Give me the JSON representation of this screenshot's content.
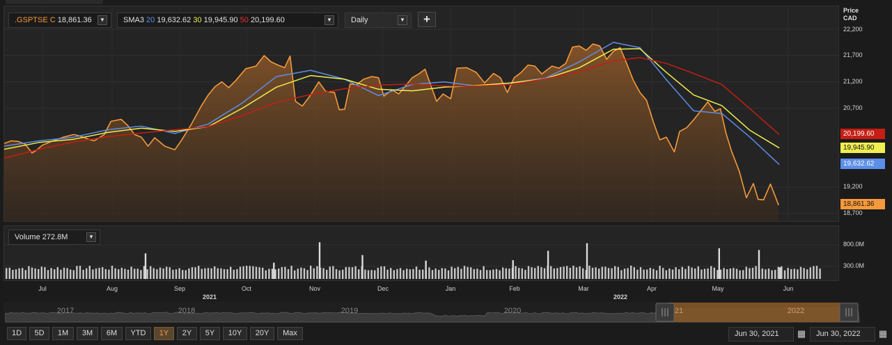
{
  "legend": {
    "symbol": ".GSPTSE",
    "close_prefix": "C",
    "close_value": "18,861.36",
    "sma_label": "SMA3",
    "sma20_period": "20",
    "sma20_value": "19,632.62",
    "sma30_period": "30",
    "sma30_value": "19,945.90",
    "sma50_period": "50",
    "sma50_value": "20,199.60",
    "interval": "Daily",
    "add_symbol": "+"
  },
  "volume_legend": {
    "label": "Volume",
    "value": "272.8M"
  },
  "price_axis": {
    "title_line1": "Price",
    "title_line2": "CAD",
    "ticks": [
      "22,200",
      "21,700",
      "21,200",
      "20,700",
      "19,200",
      "18,700"
    ]
  },
  "volume_axis": {
    "ticks": [
      "800.0M",
      "300.0M"
    ]
  },
  "last_value_tags": {
    "sma50": "20,199.60",
    "sma30": "19,945.90",
    "sma20": "19,632.62",
    "close": "18,861.36"
  },
  "x_axis": {
    "months": [
      "Jul",
      "Aug",
      "Sep",
      "Oct",
      "Nov",
      "Dec",
      "Jan",
      "Feb",
      "Mar",
      "Apr",
      "May",
      "Jun"
    ],
    "years": [
      "2021",
      "2022"
    ]
  },
  "navigator": {
    "years": [
      "2017",
      "2018",
      "2019",
      "2020",
      "2022"
    ],
    "partial_year": "21"
  },
  "range_buttons": [
    "1D",
    "5D",
    "1M",
    "3M",
    "6M",
    "YTD",
    "1Y",
    "2Y",
    "5Y",
    "10Y",
    "20Y",
    "Max"
  ],
  "active_range": "1Y",
  "date_range": {
    "from": "Jun 30, 2021",
    "to": "Jun 30, 2022"
  },
  "icons": {
    "calendar": "calendar-icon",
    "dropdown": "chevron-down-icon"
  },
  "colors": {
    "background": "#1b1b1b",
    "panel": "#242424",
    "close": "#f59a3b",
    "sma20": "#5b8fe8",
    "sma30": "#f0ee50",
    "sma50": "#c61e14",
    "volume_bars": "#c9c9c9",
    "navigator_selection": "#8a5a28"
  },
  "chart_data": [
    {
      "type": "line",
      "title": ".GSPTSE",
      "ylabel": "Price CAD",
      "ylim": [
        18700,
        22200
      ],
      "y_ticks": [
        22200,
        21700,
        21200,
        20700,
        19200,
        18700
      ],
      "x_months": [
        "Jul",
        "Aug",
        "Sep",
        "Oct",
        "Nov",
        "Dec",
        "Jan",
        "Feb",
        "Mar",
        "Apr",
        "May",
        "Jun"
      ],
      "series": [
        {
          "name": ".GSPTSE",
          "color": "#f59a3b",
          "area": true,
          "points": [
            [
              0.0,
              20030
            ],
            [
              0.1,
              20080
            ],
            [
              0.2,
              20070
            ],
            [
              0.3,
              20020
            ],
            [
              0.4,
              19850
            ],
            [
              0.45,
              19890
            ],
            [
              0.55,
              20000
            ],
            [
              0.7,
              20080
            ],
            [
              0.85,
              20150
            ],
            [
              1.0,
              20200
            ],
            [
              1.1,
              20170
            ],
            [
              1.2,
              20120
            ],
            [
              1.3,
              20080
            ],
            [
              1.45,
              20200
            ],
            [
              1.55,
              20450
            ],
            [
              1.7,
              20490
            ],
            [
              1.8,
              20370
            ],
            [
              1.9,
              20200
            ],
            [
              2.0,
              20150
            ],
            [
              2.1,
              19980
            ],
            [
              2.2,
              20140
            ],
            [
              2.35,
              19980
            ],
            [
              2.5,
              19910
            ],
            [
              2.6,
              20090
            ],
            [
              2.75,
              20400
            ],
            [
              2.9,
              20750
            ],
            [
              3.0,
              20950
            ],
            [
              3.1,
              21110
            ],
            [
              3.2,
              21200
            ],
            [
              3.3,
              21090
            ],
            [
              3.4,
              21220
            ],
            [
              3.55,
              21450
            ],
            [
              3.7,
              21500
            ],
            [
              3.82,
              21700
            ],
            [
              3.92,
              21580
            ],
            [
              4.02,
              21520
            ],
            [
              4.12,
              21470
            ],
            [
              4.2,
              21690
            ],
            [
              4.28,
              20830
            ],
            [
              4.38,
              20740
            ],
            [
              4.5,
              20950
            ],
            [
              4.62,
              21200
            ],
            [
              4.72,
              21020
            ],
            [
              4.85,
              21000
            ],
            [
              4.92,
              20670
            ],
            [
              5.0,
              20680
            ],
            [
              5.08,
              21160
            ],
            [
              5.18,
              21150
            ],
            [
              5.28,
              21250
            ],
            [
              5.4,
              21300
            ],
            [
              5.5,
              21280
            ],
            [
              5.58,
              20930
            ],
            [
              5.7,
              21050
            ],
            [
              5.8,
              20970
            ],
            [
              6.0,
              21280
            ],
            [
              6.1,
              21350
            ],
            [
              6.2,
              21440
            ],
            [
              6.3,
              21100
            ],
            [
              6.38,
              20830
            ],
            [
              6.48,
              20970
            ],
            [
              6.6,
              20880
            ],
            [
              6.7,
              21460
            ],
            [
              6.85,
              21470
            ],
            [
              7.0,
              21380
            ],
            [
              7.12,
              21180
            ],
            [
              7.25,
              21360
            ],
            [
              7.35,
              21280
            ],
            [
              7.45,
              21000
            ],
            [
              7.55,
              21280
            ],
            [
              7.65,
              21380
            ],
            [
              7.75,
              21520
            ],
            [
              7.85,
              21500
            ],
            [
              7.95,
              21350
            ],
            [
              8.1,
              21500
            ],
            [
              8.2,
              21460
            ],
            [
              8.3,
              21550
            ],
            [
              8.4,
              21860
            ],
            [
              8.5,
              21880
            ],
            [
              8.6,
              21800
            ],
            [
              8.7,
              21920
            ],
            [
              8.8,
              21880
            ],
            [
              8.9,
              21630
            ],
            [
              9.0,
              21780
            ],
            [
              9.1,
              21850
            ],
            [
              9.2,
              21550
            ],
            [
              9.3,
              21230
            ],
            [
              9.4,
              21000
            ],
            [
              9.5,
              20850
            ],
            [
              9.6,
              20450
            ],
            [
              9.7,
              20100
            ],
            [
              9.8,
              20150
            ],
            [
              9.92,
              19870
            ],
            [
              10.0,
              20260
            ],
            [
              10.1,
              20330
            ],
            [
              10.2,
              20480
            ],
            [
              10.3,
              20650
            ],
            [
              10.4,
              20820
            ],
            [
              10.5,
              20640
            ],
            [
              10.58,
              20690
            ],
            [
              10.66,
              20220
            ],
            [
              10.74,
              19880
            ],
            [
              10.85,
              19500
            ],
            [
              10.95,
              19000
            ],
            [
              11.05,
              19270
            ],
            [
              11.12,
              18970
            ],
            [
              11.2,
              18960
            ],
            [
              11.3,
              19260
            ],
            [
              11.42,
              18860
            ]
          ]
        },
        {
          "name": "SMA 20",
          "color": "#5b8fe8",
          "points": [
            [
              0.0,
              19980
            ],
            [
              0.5,
              20080
            ],
            [
              1.0,
              20150
            ],
            [
              1.5,
              20290
            ],
            [
              2.0,
              20360
            ],
            [
              2.5,
              20220
            ],
            [
              3.0,
              20400
            ],
            [
              3.5,
              20800
            ],
            [
              4.0,
              21300
            ],
            [
              4.5,
              21420
            ],
            [
              5.0,
              21250
            ],
            [
              5.5,
              20940
            ],
            [
              6.0,
              21150
            ],
            [
              6.5,
              21200
            ],
            [
              7.0,
              21120
            ],
            [
              7.5,
              21180
            ],
            [
              8.0,
              21270
            ],
            [
              8.5,
              21580
            ],
            [
              9.0,
              21950
            ],
            [
              9.4,
              21850
            ],
            [
              9.8,
              21240
            ],
            [
              10.2,
              20650
            ],
            [
              10.6,
              20600
            ],
            [
              11.0,
              20150
            ],
            [
              11.43,
              19630
            ]
          ]
        },
        {
          "name": "SMA 30",
          "color": "#f0ee50",
          "points": [
            [
              0.0,
              19920
            ],
            [
              0.5,
              20050
            ],
            [
              1.0,
              20110
            ],
            [
              1.5,
              20240
            ],
            [
              2.0,
              20320
            ],
            [
              2.5,
              20260
            ],
            [
              3.0,
              20350
            ],
            [
              3.5,
              20700
            ],
            [
              4.0,
              21100
            ],
            [
              4.5,
              21320
            ],
            [
              5.0,
              21250
            ],
            [
              5.5,
              21060
            ],
            [
              6.0,
              21030
            ],
            [
              6.5,
              21100
            ],
            [
              7.0,
              21130
            ],
            [
              7.5,
              21180
            ],
            [
              8.0,
              21260
            ],
            [
              8.5,
              21470
            ],
            [
              9.0,
              21820
            ],
            [
              9.4,
              21830
            ],
            [
              9.8,
              21380
            ],
            [
              10.2,
              20950
            ],
            [
              10.6,
              20750
            ],
            [
              11.0,
              20280
            ],
            [
              11.43,
              19946
            ]
          ]
        },
        {
          "name": "SMA 50",
          "color": "#c61e14",
          "points": [
            [
              0.0,
              19750
            ],
            [
              0.5,
              19920
            ],
            [
              1.0,
              20060
            ],
            [
              1.5,
              20160
            ],
            [
              2.0,
              20230
            ],
            [
              2.5,
              20290
            ],
            [
              3.0,
              20350
            ],
            [
              3.5,
              20560
            ],
            [
              4.0,
              20810
            ],
            [
              4.5,
              20960
            ],
            [
              5.0,
              21070
            ],
            [
              5.5,
              21140
            ],
            [
              6.0,
              21160
            ],
            [
              6.5,
              21120
            ],
            [
              7.0,
              21120
            ],
            [
              7.5,
              21150
            ],
            [
              8.0,
              21260
            ],
            [
              8.5,
              21390
            ],
            [
              9.0,
              21600
            ],
            [
              9.4,
              21660
            ],
            [
              9.8,
              21550
            ],
            [
              10.2,
              21360
            ],
            [
              10.6,
              21150
            ],
            [
              11.0,
              20690
            ],
            [
              11.43,
              20200
            ]
          ]
        }
      ]
    },
    {
      "type": "bar",
      "title": "Volume",
      "ylabel": "Volume",
      "y_ticks_millions": [
        800,
        300
      ],
      "ylim_millions": [
        0,
        1000
      ],
      "typical_millions": 250,
      "spikes": [
        {
          "month_pos": 2.05,
          "millions": 600
        },
        {
          "month_pos": 3.95,
          "millions": 380
        },
        {
          "month_pos": 4.62,
          "millions": 860
        },
        {
          "month_pos": 5.25,
          "millions": 560
        },
        {
          "month_pos": 6.2,
          "millions": 430
        },
        {
          "month_pos": 7.52,
          "millions": 440
        },
        {
          "month_pos": 8.03,
          "millions": 660
        },
        {
          "month_pos": 8.6,
          "millions": 840
        },
        {
          "month_pos": 10.55,
          "millions": 720
        },
        {
          "month_pos": 11.12,
          "millions": 680
        },
        {
          "month_pos": 11.43,
          "millions": 273
        }
      ]
    }
  ]
}
